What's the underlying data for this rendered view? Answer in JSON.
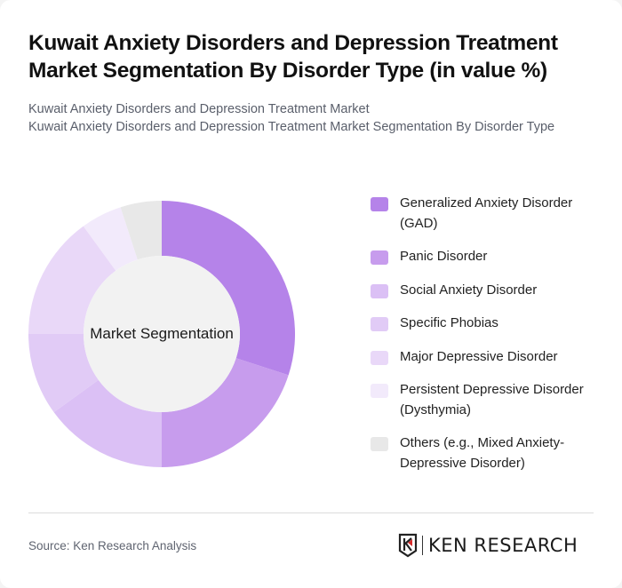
{
  "title": "Kuwait Anxiety Disorders and Depression Treatment Market Segmentation By Disorder Type (in value %)",
  "subtitle_lines": [
    "Kuwait Anxiety Disorders and Depression Treatment Market",
    "Kuwait Anxiety Disorders and Depression Treatment Market Segmentation By Disorder Type"
  ],
  "center_label": "Market Segmentation",
  "footer": {
    "source": "Source: Ken Research Analysis",
    "logo_text": "KEN RESEARCH"
  },
  "chart_data": {
    "type": "pie",
    "subtype": "donut",
    "title": "Kuwait Anxiety Disorders and Depression Treatment Market Segmentation By Disorder Type (in value %)",
    "center_label": "Market Segmentation",
    "unit": "%",
    "legend_position": "right",
    "start_angle_deg": 0,
    "direction": "clockwise",
    "categories": [
      "Generalized Anxiety Disorder (GAD)",
      "Panic Disorder",
      "Social Anxiety Disorder",
      "Specific Phobias",
      "Major Depressive Disorder",
      "Persistent Depressive Disorder (Dysthymia)",
      "Others (e.g., Mixed Anxiety-Depressive Disorder)"
    ],
    "values": [
      30,
      20,
      15,
      10,
      15,
      5,
      5
    ],
    "colors": [
      "#b583e9",
      "#c79ced",
      "#dbc0f5",
      "#e1cbf6",
      "#e9d8f8",
      "#f2eafb",
      "#e8e8e8"
    ]
  }
}
